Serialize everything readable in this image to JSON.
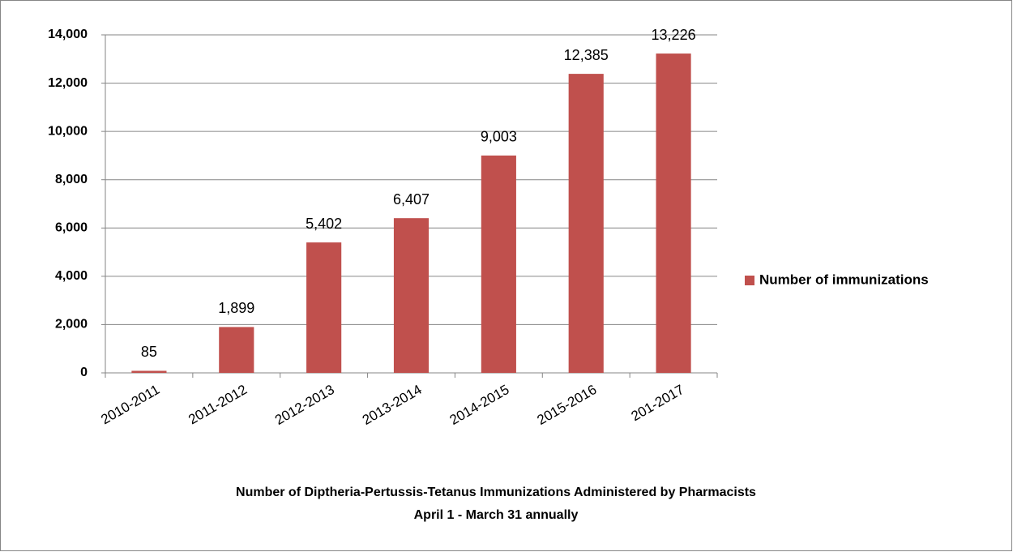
{
  "chart_data": {
    "type": "bar",
    "title_lines": [
      "Number of Diptheria-Pertussis-Tetanus Immunizations Administered by Pharmacists",
      "April 1 - March 31 annually"
    ],
    "categories": [
      "2010-2011",
      "2011-2012",
      "2012-2013",
      "2013-2014",
      "2014-2015",
      "2015-2016",
      "201-2017"
    ],
    "series": [
      {
        "name": "Number of immunizations",
        "color": "#c0504d",
        "values": [
          85,
          1899,
          5402,
          6407,
          9003,
          12385,
          13226
        ],
        "value_labels": [
          "85",
          "1,899",
          "5,402",
          "6,407",
          "9,003",
          "12,385",
          "13,226"
        ]
      }
    ],
    "ylim": [
      0,
      14000
    ],
    "yticks": [
      0,
      {
        "value": 2000,
        "label": "2,000"
      },
      {
        "value": 4000,
        "label": "4,000"
      },
      {
        "value": 6000,
        "label": "6,000"
      },
      {
        "value": 8000,
        "label": "8,000"
      },
      {
        "value": 10000,
        "label": "10,000"
      },
      {
        "value": 12000,
        "label": "12,000"
      },
      {
        "value": 14000,
        "label": "14,000"
      }
    ],
    "grid": true,
    "legend": "right"
  }
}
